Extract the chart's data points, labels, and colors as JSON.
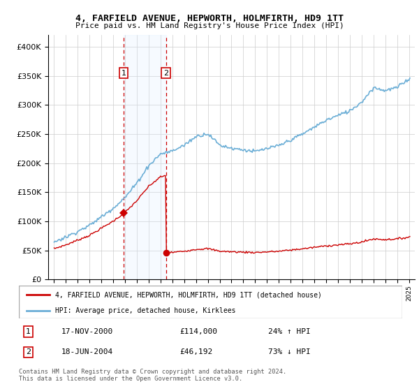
{
  "title": "4, FARFIELD AVENUE, HEPWORTH, HOLMFIRTH, HD9 1TT",
  "subtitle": "Price paid vs. HM Land Registry's House Price Index (HPI)",
  "legend_line1": "4, FARFIELD AVENUE, HEPWORTH, HOLMFIRTH, HD9 1TT (detached house)",
  "legend_line2": "HPI: Average price, detached house, Kirklees",
  "footnote": "Contains HM Land Registry data © Crown copyright and database right 2024.\nThis data is licensed under the Open Government Licence v3.0.",
  "sale1_date_num": 2000.88,
  "sale1_price": 114000,
  "sale1_label": "1",
  "sale1_info": "17-NOV-2000",
  "sale1_price_str": "£114,000",
  "sale1_hpi_str": "24% ↑ HPI",
  "sale2_date_num": 2004.46,
  "sale2_price": 46192,
  "sale2_label": "2",
  "sale2_info": "18-JUN-2004",
  "sale2_price_str": "£46,192",
  "sale2_hpi_str": "73% ↓ HPI",
  "ylim": [
    0,
    420000
  ],
  "xlim": [
    1994.5,
    2025.5
  ],
  "hpi_color": "#6baed6",
  "price_color": "#cc0000",
  "vline_color": "#cc0000",
  "shade_color": "#ddeeff",
  "background_color": "#ffffff",
  "grid_color": "#cccccc"
}
